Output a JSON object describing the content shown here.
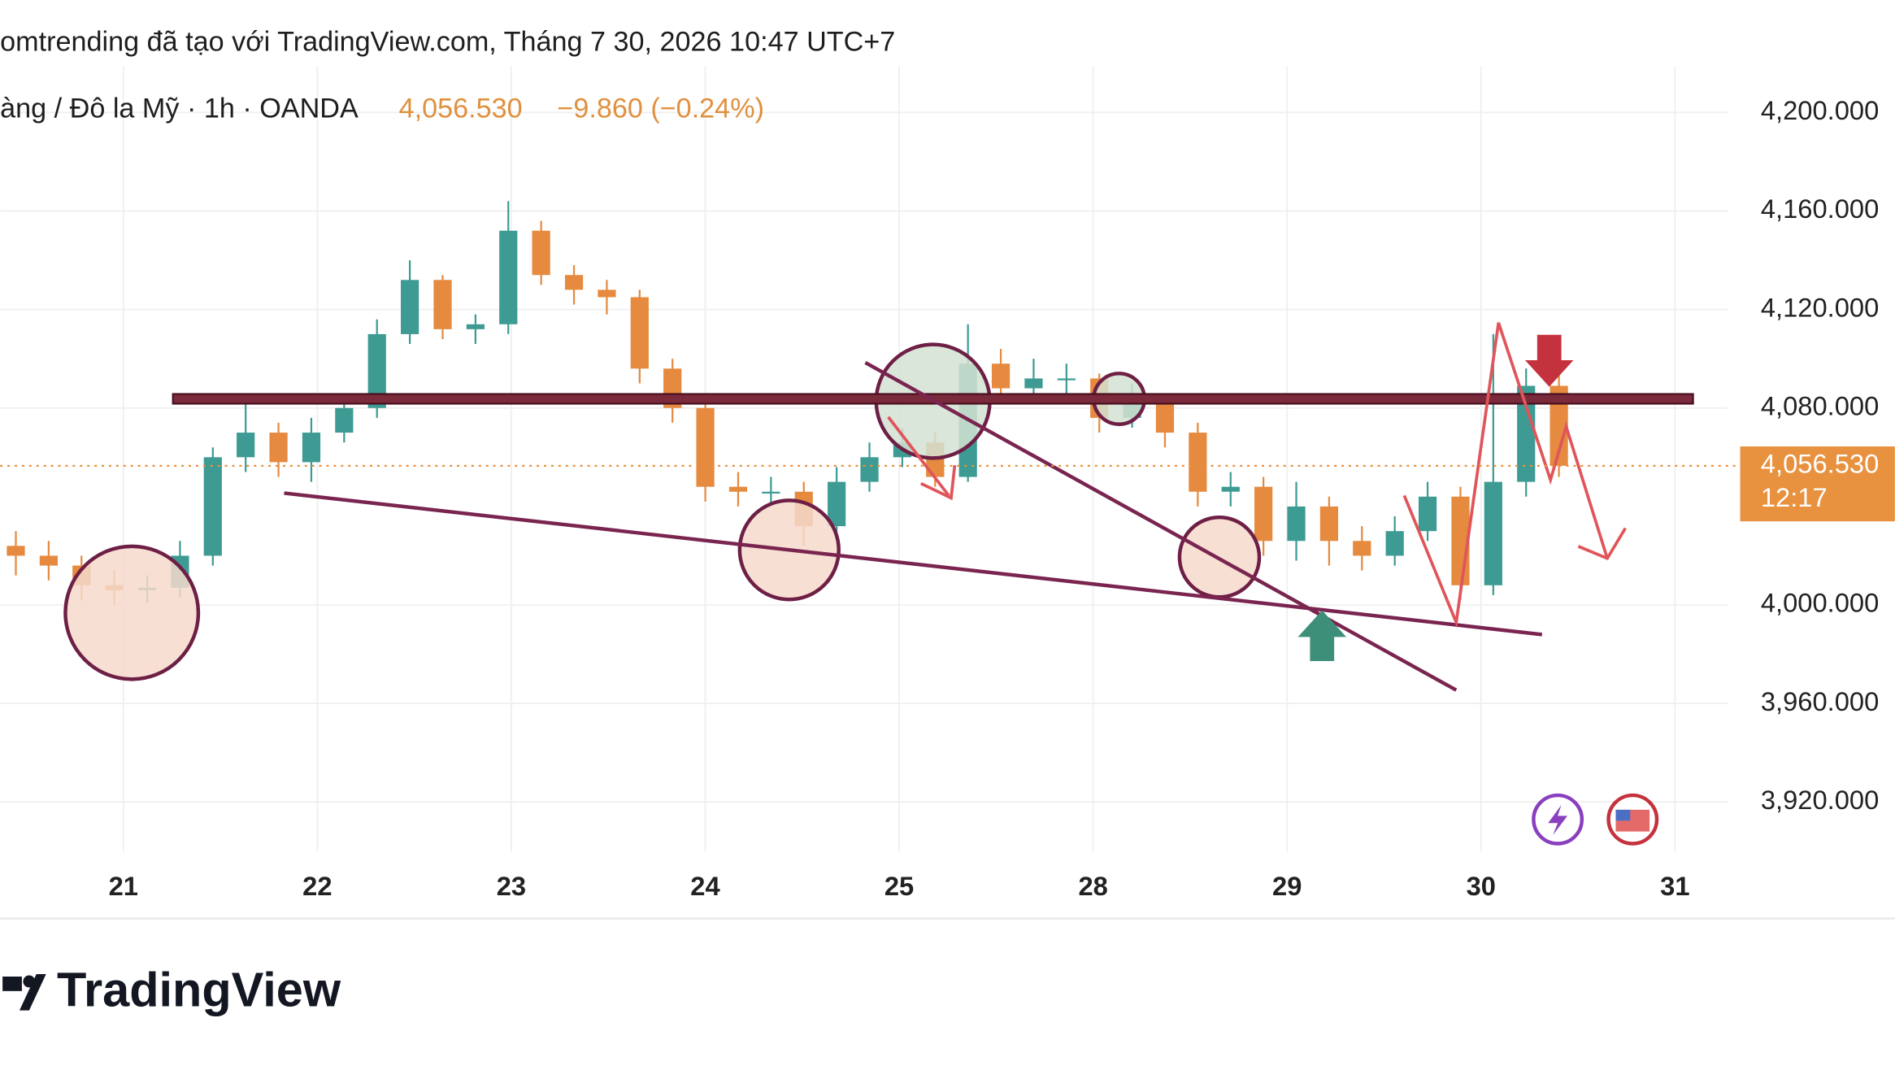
{
  "chart_data": {
    "type": "candlestick",
    "title": "omtrending đã tạo với TradingView.com, Tháng 7 30, 2026 10:47 UTC+7",
    "subtitle": "àng / Đô la Mỹ · 1h · OANDA",
    "last_price": {
      "value": 4056.53,
      "label": "4,056.530"
    },
    "change_label": "−9.860 (−0.24%)",
    "countdown": "12:17",
    "brand": "TradingView",
    "up_color": "#3d9b94",
    "down_color": "#e58a3f",
    "price_color": "#e8913f",
    "grid": true,
    "xlim": [
      -0.6355,
      8.274
    ],
    "xticks": [
      {
        "value": 0,
        "label": "21"
      },
      {
        "value": 1,
        "label": "22"
      },
      {
        "value": 2,
        "label": "23"
      },
      {
        "value": 3,
        "label": "24"
      },
      {
        "value": 4,
        "label": "25"
      },
      {
        "value": 5,
        "label": "28"
      },
      {
        "value": 6,
        "label": "29"
      },
      {
        "value": 7,
        "label": "30"
      },
      {
        "value": 8,
        "label": "31"
      }
    ],
    "ylim": [
      3902.1,
      4218.7
    ],
    "yticks": [
      {
        "value": 4200,
        "label": "4,200.000"
      },
      {
        "value": 4160,
        "label": "4,160.000"
      },
      {
        "value": 4120,
        "label": "4,120.000"
      },
      {
        "value": 4080,
        "label": "4,080.000"
      },
      {
        "value": 4000,
        "label": "4,000.000"
      },
      {
        "value": 3960,
        "label": "3,960.000"
      },
      {
        "value": 3920,
        "label": "3,920.000"
      }
    ],
    "open": [
      4024,
      4020,
      4016,
      4008,
      4006,
      4007,
      4020,
      4060,
      4070,
      4058,
      4070,
      4080,
      4110,
      4132,
      4112,
      4114,
      4152,
      4134,
      4128,
      4125,
      4096,
      4080,
      4048,
      4046,
      4046,
      4032,
      4050,
      4060,
      4066,
      4052,
      4098,
      4088,
      4092,
      4092,
      4076,
      4082,
      4070,
      4046,
      4048,
      4026,
      4040,
      4026,
      4020,
      4030,
      4044,
      4008,
      4050,
      4089
    ],
    "high": [
      4030,
      4026,
      4020,
      4014,
      4012,
      4026,
      4064,
      4082,
      4074,
      4076,
      4086,
      4116,
      4140,
      4134,
      4118,
      4164,
      4156,
      4138,
      4132,
      4128,
      4100,
      4082,
      4054,
      4052,
      4050,
      4056,
      4066,
      4072,
      4070,
      4114,
      4104,
      4100,
      4098,
      4094,
      4090,
      4086,
      4074,
      4054,
      4052,
      4050,
      4044,
      4032,
      4036,
      4050,
      4048,
      4110,
      4096,
      4094
    ],
    "low": [
      4012,
      4010,
      4002,
      4000,
      4001,
      4003,
      4016,
      4054,
      4052,
      4050,
      4066,
      4076,
      4106,
      4108,
      4106,
      4110,
      4130,
      4122,
      4118,
      4090,
      4074,
      4042,
      4040,
      4040,
      4024,
      4026,
      4046,
      4056,
      4048,
      4050,
      4084,
      4082,
      4086,
      4070,
      4072,
      4064,
      4040,
      4040,
      4020,
      4018,
      4016,
      4014,
      4016,
      4026,
      4002,
      4004,
      4044,
      4052
    ],
    "close": [
      4020,
      4016,
      4008,
      4006,
      4007,
      4020,
      4060,
      4070,
      4058,
      4070,
      4080,
      4110,
      4132,
      4112,
      4114,
      4152,
      4134,
      4128,
      4125,
      4096,
      4080,
      4048,
      4046,
      4046,
      4032,
      4050,
      4060,
      4066,
      4052,
      4098,
      4088,
      4092,
      4092,
      4076,
      4082,
      4070,
      4046,
      4048,
      4026,
      4040,
      4026,
      4020,
      4030,
      4044,
      4008,
      4050,
      4089,
      4056.53
    ]
  }
}
